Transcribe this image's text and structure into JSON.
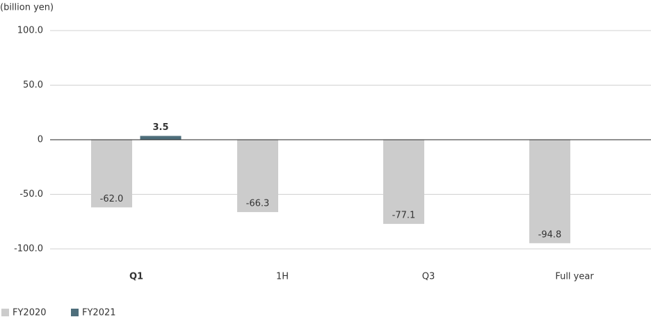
{
  "chart_data": {
    "type": "bar",
    "y_axis_label": "(billion yen)",
    "categories": [
      "Q1",
      "1H",
      "Q3",
      "Full year"
    ],
    "series": [
      {
        "name": "FY2020",
        "color": "#cccccc",
        "values": [
          -62.0,
          -66.3,
          -77.1,
          -94.8
        ],
        "value_labels": [
          "-62.0",
          "-66.3",
          "-77.1",
          "-94.8"
        ]
      },
      {
        "name": "FY2021",
        "color": "#4e6e7b",
        "values": [
          3.5,
          null,
          null,
          null
        ],
        "value_labels": [
          "3.5",
          null,
          null,
          null
        ]
      }
    ],
    "ylim": [
      -100,
      100
    ],
    "yticks": [
      {
        "value": 100,
        "label": "100.0"
      },
      {
        "value": 50,
        "label": "50.0"
      },
      0,
      {
        "value": -50,
        "label": "-50.0"
      },
      {
        "value": -100,
        "label": "-100.0"
      }
    ],
    "grid": true,
    "legend": "bottom-left"
  }
}
